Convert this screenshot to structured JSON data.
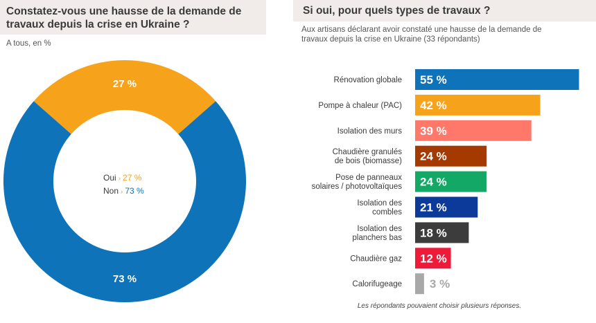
{
  "left_panel": {
    "title_line1": "Constatez-vous une hausse de la demande de",
    "title_line2": "travaux depuis la crise en Ukraine ?",
    "subtitle": "A tous, en %"
  },
  "right_panel": {
    "title": "Si oui, pour quels types de travaux ?",
    "subtitle_line1": "Aux artisans déclarant avoir constaté une hausse de la demande de",
    "subtitle_line2": "travaux depuis la crise en Ukraine (33 répondants)",
    "footnote": "Les répondants pouvaient choisir plusieurs réponses."
  },
  "legend": [
    {
      "label": "Oui",
      "value": "27 %",
      "color": "#f7a21b"
    },
    {
      "label": "Non",
      "value": "73 %",
      "color": "#0f73b9"
    }
  ],
  "chart_data": [
    {
      "type": "pie",
      "title": "Constatez-vous une hausse de la demande de travaux depuis la crise en Ukraine ?",
      "categories": [
        "Oui",
        "Non"
      ],
      "values": [
        27,
        73
      ],
      "labels": [
        "27 %",
        "73 %"
      ],
      "colors": [
        "#f7a21b",
        "#0f73b9"
      ],
      "donut": true
    },
    {
      "type": "bar",
      "orientation": "horizontal",
      "title": "Si oui, pour quels types de travaux ?",
      "categories": [
        [
          "Rénovation globale"
        ],
        [
          "Pompe à chaleur (PAC)"
        ],
        [
          "Isolation des murs"
        ],
        [
          "Chaudière granulés",
          "de bois (biomasse)"
        ],
        [
          "Pose de panneaux",
          "solaires / photovoltaïques"
        ],
        [
          "Isolation des",
          "combles"
        ],
        [
          "Isolation des",
          "planchers bas"
        ],
        [
          "Chaudière gaz"
        ],
        [
          "Calorifugeage"
        ]
      ],
      "values": [
        55,
        42,
        39,
        24,
        24,
        21,
        18,
        12,
        3
      ],
      "labels": [
        "55 %",
        "42 %",
        "39 %",
        "24 %",
        "24 %",
        "21 %",
        "18 %",
        "12 %",
        "3 %"
      ],
      "colors": [
        "#0f73b9",
        "#f7a21b",
        "#ff786a",
        "#a53a00",
        "#14a867",
        "#0c3a9a",
        "#3c3c3c",
        "#ee1a3a",
        "#a8a8a8"
      ],
      "unit": "%"
    }
  ]
}
